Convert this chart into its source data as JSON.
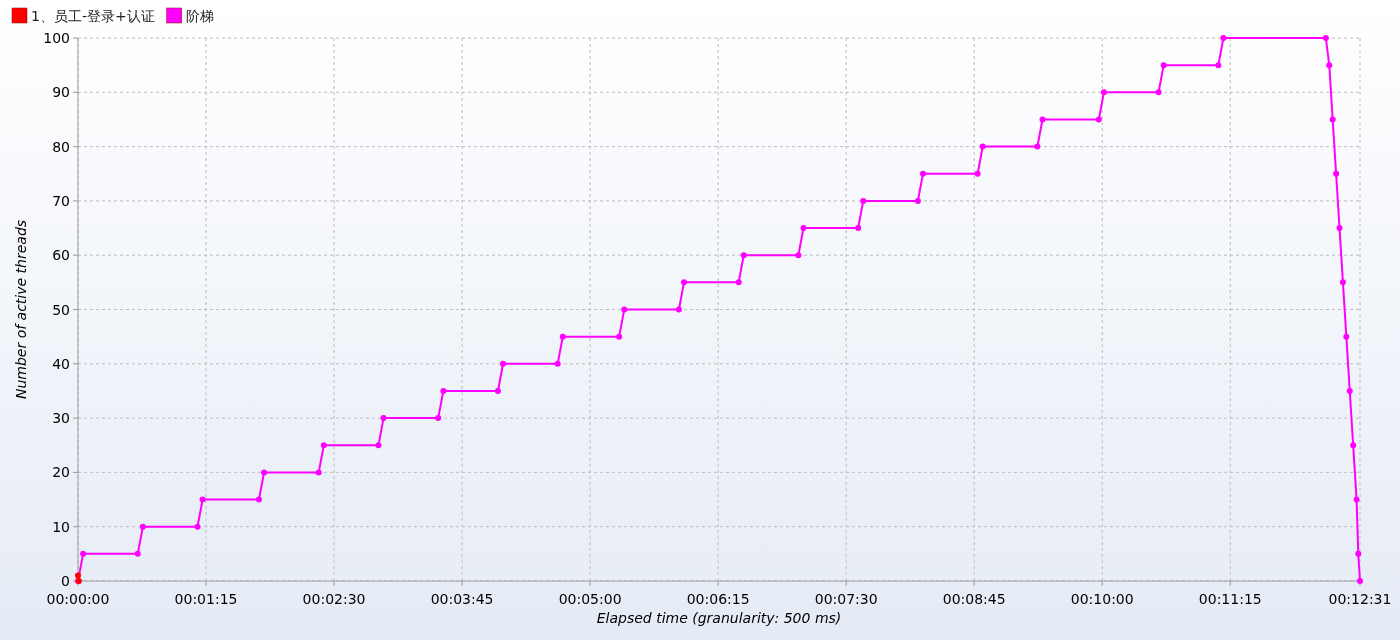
{
  "chart_data": {
    "type": "line",
    "xlabel": "Elapsed time (granularity: 500 ms)",
    "ylabel": "Number of active threads",
    "xlim": [
      0,
      751
    ],
    "ylim": [
      0,
      100
    ],
    "xticks": [
      {
        "value": 0,
        "label": "00:00:00"
      },
      {
        "value": 75,
        "label": "00:01:15"
      },
      {
        "value": 150,
        "label": "00:02:30"
      },
      {
        "value": 225,
        "label": "00:03:45"
      },
      {
        "value": 300,
        "label": "00:05:00"
      },
      {
        "value": 375,
        "label": "00:06:15"
      },
      {
        "value": 450,
        "label": "00:07:30"
      },
      {
        "value": 525,
        "label": "00:08:45"
      },
      {
        "value": 600,
        "label": "00:10:00"
      },
      {
        "value": 675,
        "label": "00:11:15"
      },
      {
        "value": 751,
        "label": "00:12:31"
      }
    ],
    "yticks": [
      0,
      10,
      20,
      30,
      40,
      50,
      60,
      70,
      80,
      90,
      100
    ],
    "grid": true,
    "legend": "top left",
    "marker": "circle",
    "line_style": "solid",
    "series": [
      {
        "name": "1、员工-登录+认证",
        "color": "#ff0000",
        "x": [
          0,
          0.5
        ],
        "values": [
          1,
          0
        ]
      },
      {
        "name": "阶梯",
        "color": "#ff00ff",
        "x": [
          0,
          3,
          35,
          38,
          70,
          73,
          106,
          109,
          141,
          144,
          176,
          179,
          211,
          214,
          246,
          249,
          281,
          284,
          317,
          320,
          352,
          355,
          387,
          390,
          422,
          425,
          457,
          460,
          492,
          495,
          527,
          530,
          562,
          565,
          598,
          601,
          633,
          636,
          668,
          671,
          731,
          733,
          735,
          737,
          739,
          741,
          743,
          745,
          747,
          749,
          750,
          751
        ],
        "values": [
          0,
          5,
          5,
          10,
          10,
          15,
          15,
          20,
          20,
          25,
          25,
          30,
          30,
          35,
          35,
          40,
          40,
          45,
          45,
          50,
          50,
          55,
          55,
          60,
          60,
          65,
          65,
          70,
          70,
          75,
          75,
          80,
          80,
          85,
          85,
          90,
          90,
          95,
          95,
          100,
          100,
          95,
          85,
          75,
          65,
          55,
          45,
          35,
          25,
          15,
          5,
          0
        ]
      }
    ]
  }
}
